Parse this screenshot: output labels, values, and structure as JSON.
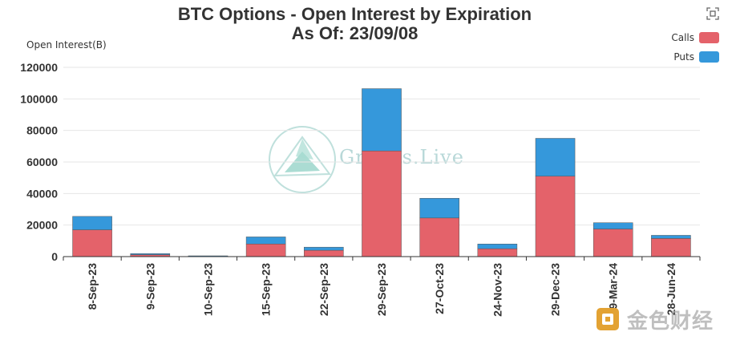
{
  "header": {
    "title": "BTC Options - Open Interest by Expiration",
    "subtitle": "As Of: 23/09/08"
  },
  "watermark": {
    "text": "Greeks.Live"
  },
  "brand": {
    "text": "金色财经"
  },
  "chart_data": {
    "type": "bar",
    "stacked": true,
    "ylabel": "Open Interest(B)",
    "xlabel": "",
    "ylim": [
      0,
      120000
    ],
    "yticks": [
      0,
      20000,
      40000,
      60000,
      80000,
      100000,
      120000
    ],
    "grid": true,
    "legend_position": "top-right",
    "categories": [
      "8-Sep-23",
      "9-Sep-23",
      "10-Sep-23",
      "15-Sep-23",
      "22-Sep-23",
      "29-Sep-23",
      "27-Oct-23",
      "24-Nov-23",
      "29-Dec-23",
      "29-Mar-24",
      "28-Jun-24"
    ],
    "series": [
      {
        "name": "Calls",
        "color": "#e4626a",
        "values": [
          17000,
          1200,
          300,
          8000,
          4000,
          67000,
          24500,
          5000,
          51000,
          17500,
          11500
        ]
      },
      {
        "name": "Puts",
        "color": "#3598db",
        "values": [
          8500,
          700,
          200,
          4500,
          2000,
          39500,
          12500,
          3000,
          24000,
          4000,
          2000
        ]
      }
    ]
  },
  "colors": {
    "calls": "#e4626a",
    "puts": "#3598db",
    "grid": "#e6e6e6",
    "axis": "#333333"
  }
}
